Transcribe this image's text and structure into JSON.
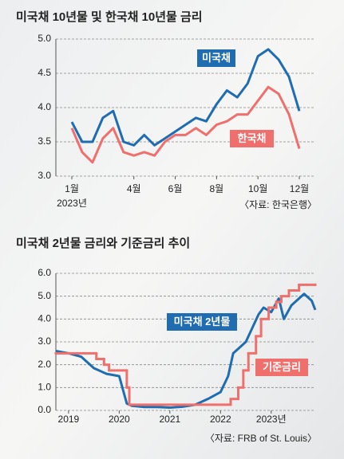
{
  "chart_data": [
    {
      "type": "line",
      "title": "미국채 10년물 및 한국채 10년물 금리",
      "categories": [
        "1월",
        null,
        null,
        null,
        null,
        null,
        "4월",
        null,
        null,
        null,
        "6월",
        null,
        null,
        null,
        "8월",
        null,
        null,
        null,
        "10월",
        null,
        null,
        null,
        "12월"
      ],
      "year_label": "2023년",
      "series": [
        {
          "name": "미국채",
          "color": "#1f6db0",
          "values": [
            3.79,
            3.5,
            3.5,
            3.85,
            3.95,
            3.5,
            3.45,
            3.6,
            3.45,
            3.55,
            3.65,
            3.75,
            3.85,
            3.8,
            4.05,
            4.25,
            4.15,
            4.35,
            4.75,
            4.85,
            4.7,
            4.45,
            3.95
          ]
        },
        {
          "name": "한국채",
          "color": "#ef6f6c",
          "values": [
            3.7,
            3.35,
            3.2,
            3.55,
            3.7,
            3.35,
            3.3,
            3.35,
            3.3,
            3.5,
            3.6,
            3.6,
            3.7,
            3.6,
            3.75,
            3.8,
            3.9,
            3.9,
            4.1,
            4.3,
            4.2,
            3.9,
            3.4
          ]
        }
      ],
      "ylim": [
        3,
        5
      ],
      "yticks": [
        {
          "value": 3,
          "label": "3.0"
        },
        {
          "value": 3.5,
          "label": "3.5"
        },
        {
          "value": 4,
          "label": "4.0"
        },
        {
          "value": 4.5,
          "label": "4.5"
        },
        {
          "value": 5,
          "label": "5.0"
        }
      ],
      "grid": true,
      "source": "〈자료: 한국은행〉"
    },
    {
      "type": "line",
      "title": "미국채 2년물 금리와 기준금리 추이",
      "xlim": [
        2018.75,
        2023.87
      ],
      "xticks": [
        2019,
        2020,
        2021,
        2022,
        {
          "value": 2023,
          "label": "2023년"
        }
      ],
      "series": [
        {
          "name": "미국채 2년물",
          "color": "#1f6db0",
          "x": [
            2018.75,
            2019.0,
            2019.25,
            2019.5,
            2019.75,
            2020.0,
            2020.15,
            2020.25,
            2020.5,
            2020.75,
            2021.0,
            2021.25,
            2021.5,
            2021.75,
            2022.0,
            2022.15,
            2022.25,
            2022.5,
            2022.75,
            2022.85,
            2023.0,
            2023.15,
            2023.25,
            2023.4,
            2023.5,
            2023.65,
            2023.8,
            2023.87
          ],
          "values": [
            2.6,
            2.5,
            2.35,
            1.85,
            1.6,
            1.5,
            0.3,
            0.2,
            0.15,
            0.15,
            0.12,
            0.16,
            0.25,
            0.5,
            0.8,
            1.5,
            2.5,
            3.0,
            4.2,
            4.5,
            4.3,
            4.9,
            4.0,
            4.6,
            4.8,
            5.1,
            4.8,
            4.4
          ]
        },
        {
          "name": "기준금리",
          "color": "#ef6f6c",
          "step": "after",
          "x": [
            2018.75,
            2019.55,
            2019.7,
            2019.8,
            2020.15,
            2020.2,
            2022.2,
            2022.35,
            2022.45,
            2022.55,
            2022.7,
            2022.8,
            2022.95,
            2023.1,
            2023.2,
            2023.35,
            2023.55,
            2023.87
          ],
          "values": [
            2.5,
            2.25,
            2.0,
            1.75,
            1.0,
            0.25,
            0.5,
            1.0,
            1.75,
            2.5,
            3.25,
            4.0,
            4.5,
            4.75,
            5.0,
            5.25,
            5.5,
            5.5
          ]
        }
      ],
      "ylim": [
        0,
        6
      ],
      "yticks": [
        {
          "value": 0,
          "label": "0.0"
        },
        {
          "value": 1,
          "label": "1.0"
        },
        {
          "value": 2,
          "label": "2.0"
        },
        {
          "value": 3,
          "label": "3.0"
        },
        {
          "value": 4,
          "label": "4.0"
        },
        {
          "value": 5,
          "label": "5.0"
        },
        {
          "value": 6,
          "label": "6.0"
        }
      ],
      "grid": true,
      "source": "〈자료: FRB of St. Louis〉"
    }
  ]
}
